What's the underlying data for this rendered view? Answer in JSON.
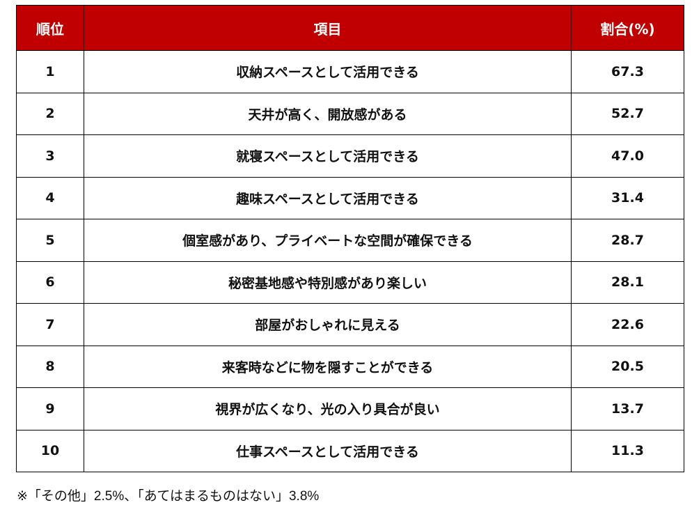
{
  "header_color": "#C00000",
  "columns": [
    "順位",
    "項目",
    "割合(%)"
  ],
  "rows": [
    {
      "rank": "1",
      "item": "収納スペースとして活用できる",
      "pct": "67.3"
    },
    {
      "rank": "2",
      "item": "天井が高く、開放感がある",
      "pct": "52.7"
    },
    {
      "rank": "3",
      "item": "就寝スペースとして活用できる",
      "pct": "47.0"
    },
    {
      "rank": "4",
      "item": "趣味スペースとして活用できる",
      "pct": "31.4"
    },
    {
      "rank": "5",
      "item": "個室感があり、プライベートな空間が確保できる",
      "pct": "28.7"
    },
    {
      "rank": "6",
      "item": "秘密基地感や特別感があり楽しい",
      "pct": "28.1"
    },
    {
      "rank": "7",
      "item": "部屋がおしゃれに見える",
      "pct": "22.6"
    },
    {
      "rank": "8",
      "item": "来客時などに物を隠すことができる",
      "pct": "20.5"
    },
    {
      "rank": "9",
      "item": "視界が広くなり、光の入り具合が良い",
      "pct": "13.7"
    },
    {
      "rank": "10",
      "item": "仕事スペースとして活用できる",
      "pct": "11.3"
    }
  ],
  "footnote": "※「その他」2.5%、「あてはまるものはない」3.8%"
}
